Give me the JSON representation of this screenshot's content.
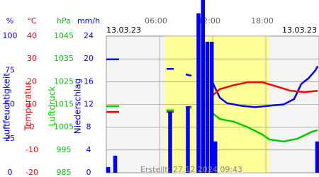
{
  "chart_data": {
    "type": "weather",
    "date_left": "13.03.23",
    "date_right": "13.03.23",
    "footer": "Erstellt: 27.12.2024 09:43",
    "xlim": [
      0,
      24
    ],
    "xticks": [
      {
        "value": 6,
        "label": "06:00"
      },
      {
        "value": 12,
        "label": "12:00"
      },
      {
        "value": 18,
        "label": "18:00"
      }
    ],
    "daylight": [
      6.6,
      18.4
    ],
    "grid": true,
    "axes": [
      {
        "unit": "%",
        "label": "Luftfeuchtigkeit",
        "color": "#0000ff",
        "lim": [
          0,
          100
        ],
        "ticks": [
          0,
          25,
          50,
          75,
          100
        ]
      },
      {
        "unit": "°C",
        "label": "Temperatur",
        "color": "#ff0000",
        "lim": [
          -20,
          40
        ],
        "ticks": [
          -20,
          -10,
          0,
          10,
          20,
          30,
          40
        ]
      },
      {
        "unit": "hPa",
        "label": "Luftdruck",
        "color": "#00cc00",
        "lim": [
          985,
          1045
        ],
        "ticks": [
          985,
          995,
          1005,
          1015,
          1025,
          1035,
          1045
        ]
      },
      {
        "unit": "mm/h",
        "label": "Niederschlag",
        "color": "#0000ff",
        "lim": [
          0,
          24
        ],
        "ticks": [
          0,
          4,
          8,
          12,
          16,
          20,
          24
        ]
      }
    ],
    "series": [
      {
        "kind": "line",
        "axis": 0,
        "color": "#0000ff",
        "x": [
          0,
          1.44,
          3,
          6.8,
          7.6,
          8,
          8.96,
          9.6,
          11,
          12,
          12.8,
          13.6,
          15.2,
          16.8,
          18.4,
          20,
          21.2,
          22,
          22.8,
          23.6,
          23.84
        ],
        "values": [
          83,
          83,
          null,
          76,
          76,
          null,
          72,
          71,
          null,
          66,
          55,
          51,
          49,
          48,
          49,
          50,
          54,
          65,
          69,
          75,
          78
        ]
      },
      {
        "kind": "line",
        "axis": 1,
        "color": "#ff0000",
        "x": [
          0,
          1.44,
          3,
          6.8,
          7.6,
          8,
          8.96,
          9.6,
          11,
          12,
          12.8,
          14.4,
          16,
          17.6,
          19.2,
          20.8,
          22.4,
          23.84
        ],
        "values": [
          6.7,
          6.7,
          null,
          6.7,
          6.7,
          null,
          8.6,
          9,
          null,
          13.9,
          16.7,
          18.5,
          19.8,
          19.8,
          17.9,
          16,
          15.4,
          16
        ]
      },
      {
        "kind": "line",
        "axis": 2,
        "color": "#00cc00",
        "x": [
          0,
          1.44,
          3,
          6.8,
          7.6,
          8,
          8.96,
          9.6,
          11,
          12,
          12.8,
          14.4,
          16,
          17.6,
          18.4,
          20,
          21.6,
          23.2,
          23.84
        ],
        "values": [
          1014.2,
          1014.2,
          null,
          1012.4,
          1012.4,
          null,
          1013.3,
          1013.6,
          null,
          1011.1,
          1008.6,
          1007.4,
          1004.9,
          1001.8,
          999.6,
          998.7,
          1000,
          1003,
          1003.7
        ]
      },
      {
        "kind": "bar",
        "axis": 3,
        "color": "#0000ff",
        "x": [
          0.2,
          1.0,
          7.2,
          9.2,
          10.4,
          10.9,
          11.4,
          11.9,
          12.3,
          23.8
        ],
        "values": [
          1,
          3,
          10.7,
          11.7,
          28,
          31,
          23,
          23,
          5.5,
          5.5
        ]
      }
    ]
  }
}
